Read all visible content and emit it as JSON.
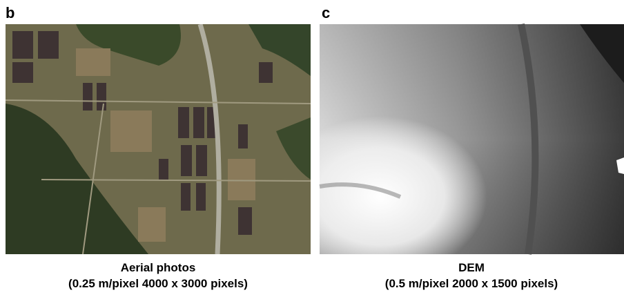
{
  "panels": [
    {
      "label": "b",
      "caption": [
        "Aerial photos",
        "(0.25 m/pixel 4000 x 3000 pixels)"
      ]
    },
    {
      "label": "c",
      "caption": [
        "DEM",
        "(0.5 m/pixel 2000 x 1500 pixels)"
      ]
    }
  ]
}
